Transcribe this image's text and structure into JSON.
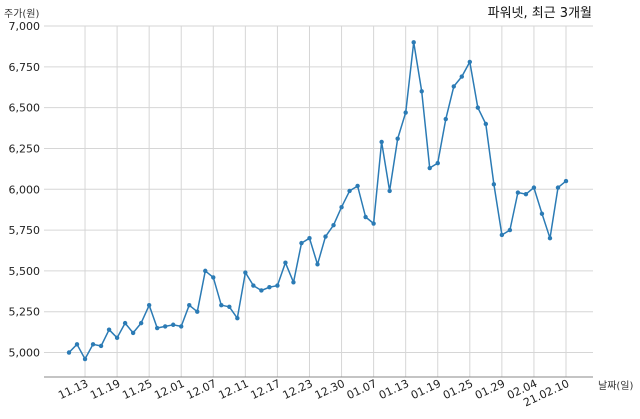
{
  "chart_data": {
    "type": "line",
    "title": "파워넷, 최근 3개월",
    "ylabel": "주가(원)",
    "xlabel": "날짜(일)",
    "ylim": [
      4850,
      7000
    ],
    "yticks": [
      "5,000",
      "5,250",
      "5,500",
      "5,750",
      "6,000",
      "6,250",
      "6,500",
      "6,750",
      "7,000"
    ],
    "xtick_labels": [
      "11.13",
      "11.19",
      "11.25",
      "12.01",
      "12.07",
      "12.11",
      "12.17",
      "12.23",
      "12.30",
      "01.07",
      "01.13",
      "01.19",
      "01.25",
      "01.29",
      "02.04",
      "21.02.10"
    ],
    "xtick_positions": [
      2,
      6,
      10,
      14,
      18,
      22,
      26,
      30,
      34,
      38,
      42,
      46,
      50,
      54,
      58,
      62
    ],
    "grid": true,
    "line_color": "#2b7bb5",
    "series": [
      {
        "values": [
          5000,
          5050,
          4960,
          5050,
          5040,
          5140,
          5090,
          5180,
          5120,
          5180,
          5290,
          5150,
          5160,
          5170,
          5160,
          5290,
          5250,
          5500,
          5460,
          5290,
          5280,
          5210,
          5490,
          5410,
          5380,
          5400,
          5410,
          5550,
          5430,
          5670,
          5700,
          5540,
          5710,
          5780,
          5890,
          5990,
          6020,
          5830,
          5790,
          6290,
          5990,
          6310,
          6470,
          6900,
          6600,
          6130,
          6160,
          6430,
          6630,
          6690,
          6780,
          6500,
          6400,
          6030,
          5720,
          5750,
          5980,
          5970,
          6010,
          5850,
          5700,
          6010,
          6050
        ]
      }
    ]
  }
}
